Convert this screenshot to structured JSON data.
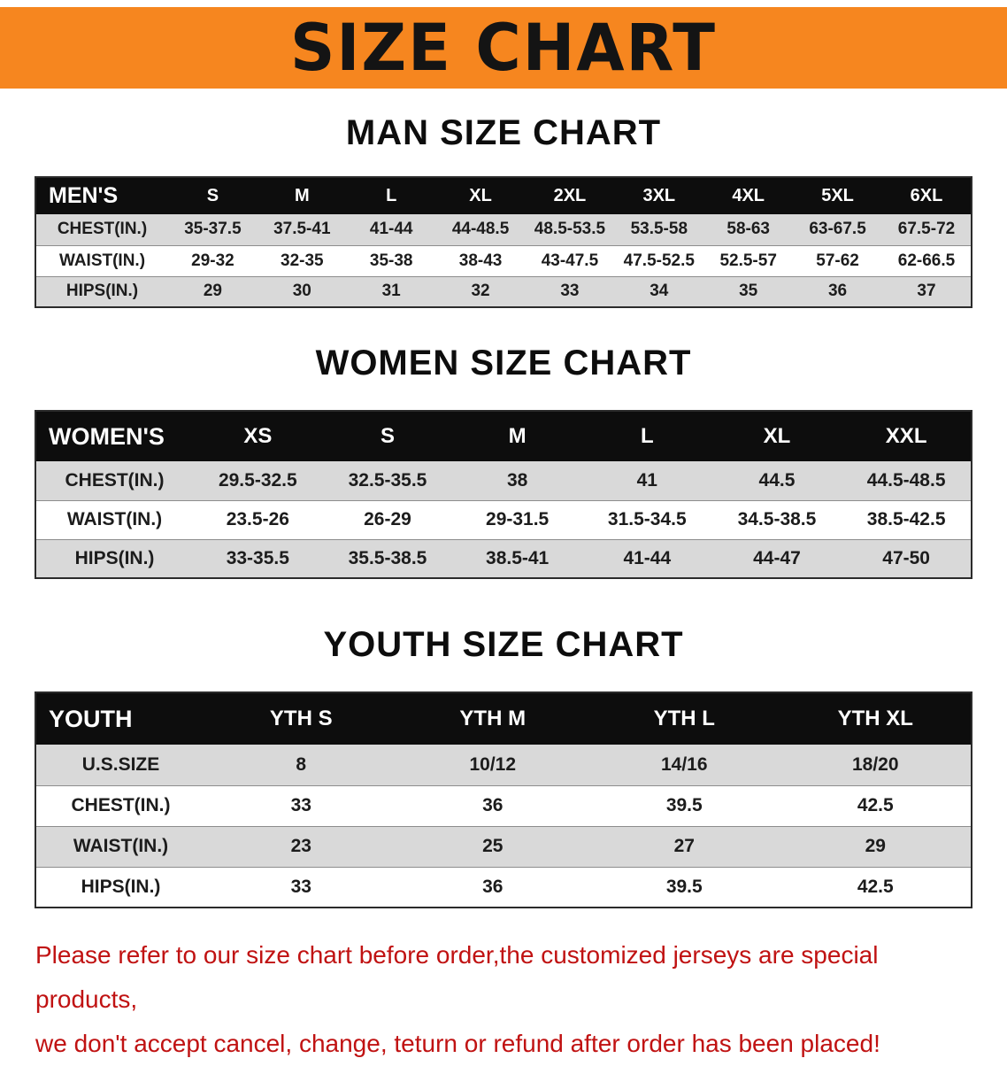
{
  "banner": {
    "title": "SIZE CHART",
    "bg_color": "#f6861f",
    "text_color": "#141414"
  },
  "sections": [
    {
      "heading": "MAN SIZE CHART",
      "table": {
        "header": [
          "MEN'S",
          "S",
          "M",
          "L",
          "XL",
          "2XL",
          "3XL",
          "4XL",
          "5XL",
          "6XL"
        ],
        "rows": [
          [
            "CHEST(IN.)",
            "35-37.5",
            "37.5-41",
            "41-44",
            "44-48.5",
            "48.5-53.5",
            "53.5-58",
            "58-63",
            "63-67.5",
            "67.5-72"
          ],
          [
            "WAIST(IN.)",
            "29-32",
            "32-35",
            "35-38",
            "38-43",
            "43-47.5",
            "47.5-52.5",
            "52.5-57",
            "57-62",
            "62-66.5"
          ],
          [
            "HIPS(IN.)",
            "29",
            "30",
            "31",
            "32",
            "33",
            "34",
            "35",
            "36",
            "37"
          ]
        ]
      }
    },
    {
      "heading": "WOMEN SIZE CHART",
      "table": {
        "header": [
          "WOMEN'S",
          "XS",
          "S",
          "M",
          "L",
          "XL",
          "XXL"
        ],
        "rows": [
          [
            "CHEST(IN.)",
            "29.5-32.5",
            "32.5-35.5",
            "38",
            "41",
            "44.5",
            "44.5-48.5"
          ],
          [
            "WAIST(IN.)",
            "23.5-26",
            "26-29",
            "29-31.5",
            "31.5-34.5",
            "34.5-38.5",
            "38.5-42.5"
          ],
          [
            "HIPS(IN.)",
            "33-35.5",
            "35.5-38.5",
            "38.5-41",
            "41-44",
            "44-47",
            "47-50"
          ]
        ]
      }
    },
    {
      "heading": "YOUTH SIZE CHART",
      "table": {
        "header": [
          "YOUTH",
          "YTH S",
          "YTH M",
          "YTH L",
          "YTH XL"
        ],
        "rows": [
          [
            "U.S.SIZE",
            "8",
            "10/12",
            "14/16",
            "18/20"
          ],
          [
            "CHEST(IN.)",
            "33",
            "36",
            "39.5",
            "42.5"
          ],
          [
            "WAIST(IN.)",
            "23",
            "25",
            "27",
            "29"
          ],
          [
            "HIPS(IN.)",
            "33",
            "36",
            "39.5",
            "42.5"
          ]
        ]
      }
    }
  ],
  "disclaimer": {
    "line1": "Please refer to our size chart before order,the customized jerseys are special products,",
    "line2": "we don't accept cancel, change, teturn or refund after order has been placed!",
    "text_color": "#c01212"
  }
}
